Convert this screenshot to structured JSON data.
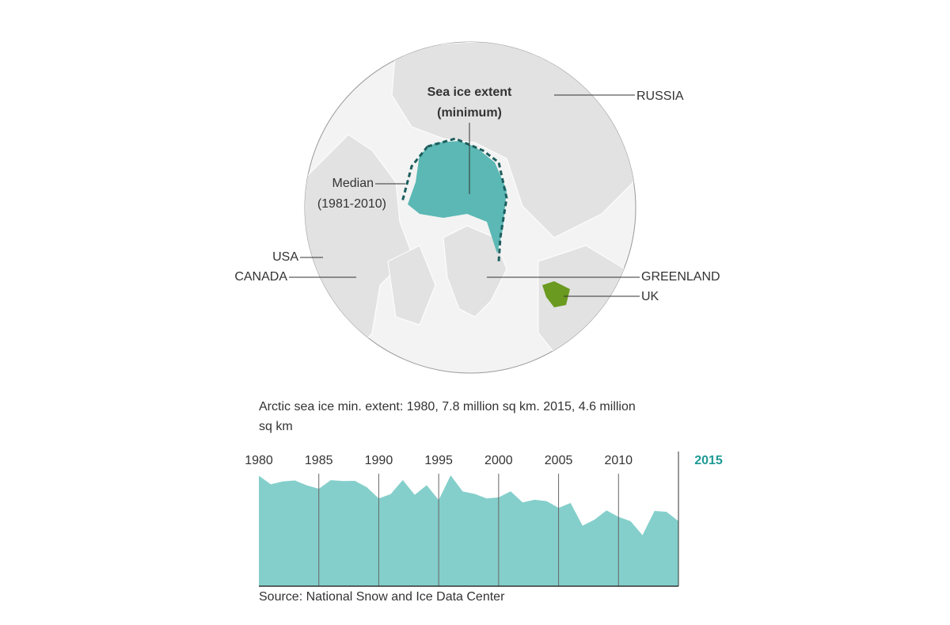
{
  "map": {
    "ice_label": [
      "Sea ice extent",
      "(minimum)"
    ],
    "median_label": [
      "Median",
      "(1981-2010)"
    ],
    "countries": [
      "RUSSIA",
      "USA",
      "CANADA",
      "GREENLAND",
      "UK"
    ]
  },
  "chart_data": {
    "type": "area",
    "title": "Arctic sea ice min. extent: 1980, 7.8 million sq km. 2015, 4.6 million sq km",
    "source": "Source: National Snow and Ice Data Center",
    "color": "#84cfcb",
    "x": [
      1980,
      1981,
      1982,
      1983,
      1984,
      1985,
      1986,
      1987,
      1988,
      1989,
      1990,
      1991,
      1992,
      1993,
      1994,
      1995,
      1996,
      1997,
      1998,
      1999,
      2000,
      2001,
      2002,
      2003,
      2004,
      2005,
      2006,
      2007,
      2008,
      2009,
      2010,
      2011,
      2012,
      2013,
      2014,
      2015
    ],
    "values": [
      7.85,
      7.25,
      7.45,
      7.52,
      7.17,
      6.93,
      7.54,
      7.48,
      7.49,
      7.04,
      6.24,
      6.55,
      7.55,
      6.5,
      7.18,
      6.13,
      7.88,
      6.74,
      6.56,
      6.24,
      6.32,
      6.75,
      5.96,
      6.15,
      6.05,
      5.57,
      5.92,
      4.3,
      4.73,
      5.39,
      4.93,
      4.63,
      3.63,
      5.35,
      5.29,
      4.63
    ],
    "xlim": [
      1980,
      2015
    ],
    "xticks": [
      1980,
      1985,
      1990,
      1995,
      2000,
      2005,
      2010,
      2015
    ],
    "ylim": [
      0,
      8
    ],
    "grid": true
  }
}
